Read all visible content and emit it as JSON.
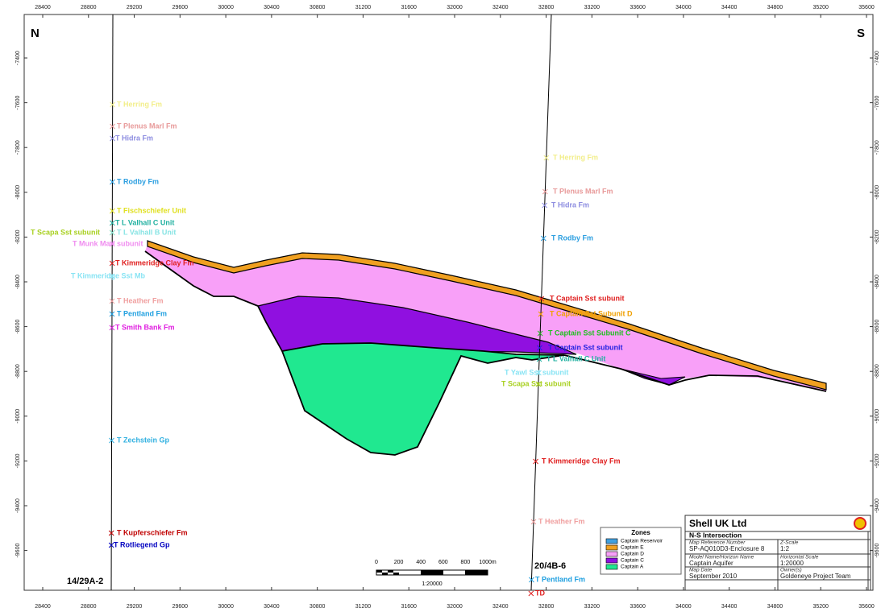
{
  "orientation": {
    "left": "N",
    "right": "S"
  },
  "x_axis": {
    "ticks": [
      28400,
      28800,
      29200,
      29600,
      30000,
      30400,
      30800,
      31200,
      31600,
      32000,
      32400,
      32800,
      33200,
      33600,
      34000,
      34400,
      34800,
      35200,
      35600
    ]
  },
  "y_axis": {
    "ticks": [
      -7400,
      -7600,
      -7800,
      -8000,
      -8200,
      -8400,
      -8600,
      -8800,
      -9000,
      -9200,
      -9400,
      -9600
    ]
  },
  "wells": [
    {
      "name": "14/29A-2",
      "tops": [
        {
          "label": "T Herring Fm",
          "color": "#f2ee8a"
        },
        {
          "label": "T Plenus Marl Fm",
          "color": "#e89a9a"
        },
        {
          "label": "T Hidra Fm",
          "color": "#8c8ce0"
        },
        {
          "label": "T Rodby Fm",
          "color": "#2a9ee0"
        },
        {
          "label": "T Fischschiefer Unit",
          "color": "#e0e020"
        },
        {
          "label": "T L Valhall C Unit",
          "color": "#20b0a0"
        },
        {
          "label": "T Scapa Sst subunit",
          "color": "#a8d020"
        },
        {
          "label": "T L Valhall B Unit",
          "color": "#88e4e4"
        },
        {
          "label": "T Munk Marl subunit",
          "color": "#f08cf0"
        },
        {
          "label": "T Kimmeridge Clay Fm",
          "color": "#e02020"
        },
        {
          "label": "T Kimmeridge Sst Mb",
          "color": "#88e4f4"
        },
        {
          "label": "T Heather Fm",
          "color": "#f0a0a0"
        },
        {
          "label": "T Pentland Fm",
          "color": "#20a0e0"
        },
        {
          "label": "T Smith Bank Fm",
          "color": "#e020e0"
        },
        {
          "label": "T Zechstein Gp",
          "color": "#30b0e0"
        },
        {
          "label": "T Kupferschiefer Fm",
          "color": "#c00000"
        },
        {
          "label": "T Rotliegend Gp",
          "color": "#0000c0"
        }
      ]
    },
    {
      "name": "20/4B-6",
      "tops": [
        {
          "label": "T Herring Fm",
          "color": "#f2ee8a"
        },
        {
          "label": "T Plenus Marl Fm",
          "color": "#e89a9a"
        },
        {
          "label": "T Hidra Fm",
          "color": "#8c8ce0"
        },
        {
          "label": "T Rodby Fm",
          "color": "#2a9ee0"
        },
        {
          "label": "T Captain Sst subunit",
          "color": "#e02020"
        },
        {
          "label": "T Captain Sst Subunit D",
          "color": "#f0a000"
        },
        {
          "label": "T Captain Sst Subunit C",
          "color": "#20c020"
        },
        {
          "label": "T Captain Sst subunit",
          "color": "#2020e0"
        },
        {
          "label": "T L Valhall C Unit",
          "color": "#20b0a0"
        },
        {
          "label": "T Yawl Sst subunit",
          "color": "#88e4f4"
        },
        {
          "label": "T Scapa Sst subunit",
          "color": "#a8d020"
        },
        {
          "label": "T Kimmeridge Clay Fm",
          "color": "#e02020"
        },
        {
          "label": "T Heather Fm",
          "color": "#f0a0a0"
        },
        {
          "label": "T Pentland Fm",
          "color": "#20a0e0"
        },
        {
          "label": "TD",
          "color": "#e02020"
        }
      ]
    }
  ],
  "legend": {
    "title": "Zones",
    "items": [
      {
        "label": "Captain Reservoir",
        "color": "#40a0e0"
      },
      {
        "label": "Captain E",
        "color": "#f0a020"
      },
      {
        "label": "Captain D",
        "color": "#f8a0f8"
      },
      {
        "label": "Captain C",
        "color": "#9010e0"
      },
      {
        "label": "Captain A",
        "color": "#20e890"
      }
    ]
  },
  "scale_bar": {
    "labels": [
      "0",
      "200",
      "400",
      "600",
      "800",
      "1000m"
    ],
    "ratio": "1:20000"
  },
  "title_block": {
    "company": "Shell UK Ltd",
    "section": "N-S Intersection",
    "fields": [
      {
        "label": "Map Reference Number",
        "value": "SP-AQ010D3-Enclosure 8"
      },
      {
        "label": "Z-Scale",
        "value": "1:2"
      },
      {
        "label": "Model Name/Horizon Name",
        "value": "Captain Aquifer"
      },
      {
        "label": "Horizontal Scale",
        "value": "1:20000"
      },
      {
        "label": "Map Date",
        "value": "September 2010"
      },
      {
        "label": "Owner(s)",
        "value": "Goldeneye Project Team"
      }
    ]
  }
}
